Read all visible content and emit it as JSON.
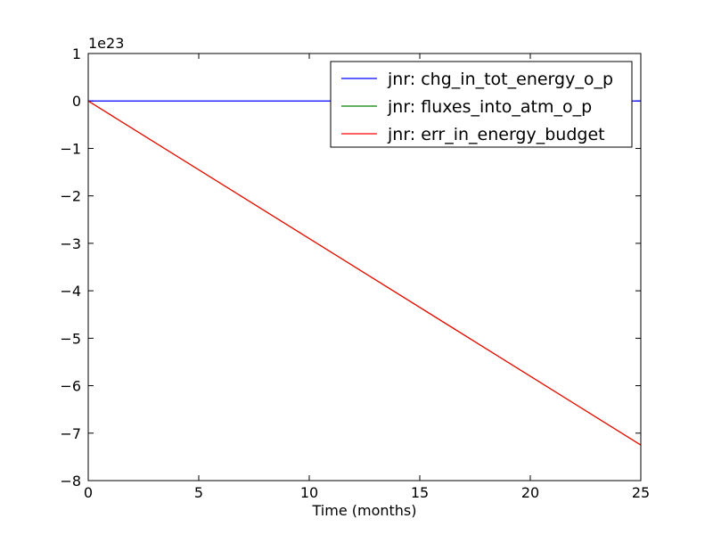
{
  "chart_data": {
    "type": "line",
    "title": "",
    "xlabel": "Time (months)",
    "ylabel": "",
    "y_offset_label": "1e23",
    "y_scale_factor": 1e+23,
    "xlim": [
      0,
      25
    ],
    "ylim": [
      -8,
      1
    ],
    "x_ticks": [
      0,
      5,
      10,
      15,
      20,
      25
    ],
    "y_ticks": [
      1,
      0,
      -1,
      -2,
      -3,
      -4,
      -5,
      -6,
      -7,
      -8
    ],
    "x_tick_labels": [
      "0",
      "5",
      "10",
      "15",
      "20",
      "25"
    ],
    "y_tick_labels": [
      "1",
      "0",
      "−1",
      "−2",
      "−3",
      "−4",
      "−5",
      "−6",
      "−7",
      "−8"
    ],
    "grid": false,
    "legend_position": "upper right",
    "series": [
      {
        "name": "jnr: chg_in_tot_energy_o_p",
        "color": "#0000ff",
        "x": [
          0,
          25
        ],
        "y": [
          0,
          0
        ]
      },
      {
        "name": "jnr: fluxes_into_atm_o_p",
        "color": "#008000",
        "x": [
          0,
          25
        ],
        "y": [
          0,
          -7.25
        ]
      },
      {
        "name": "jnr: err_in_energy_budget",
        "color": "#ff0000",
        "x": [
          0,
          25
        ],
        "y": [
          0,
          -7.25
        ]
      }
    ]
  }
}
